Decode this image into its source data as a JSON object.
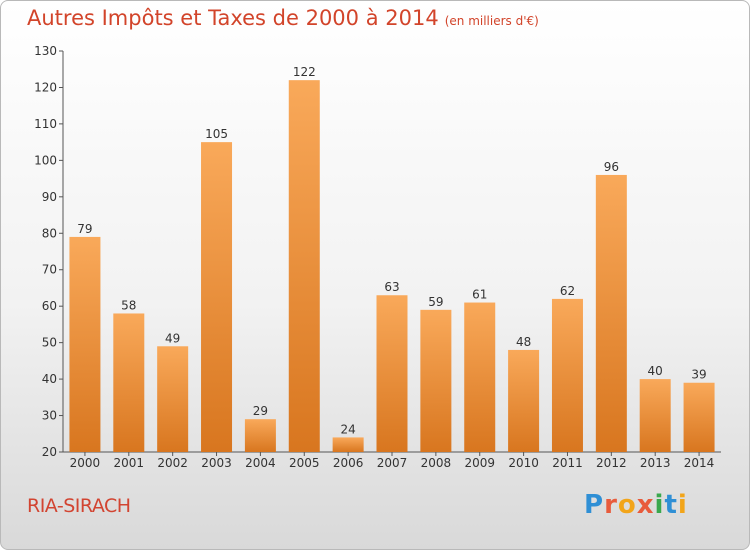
{
  "header": {
    "title": "Autres Impôts et Taxes de 2000 à 2014",
    "subtitle": "(en milliers d'€)"
  },
  "footer": {
    "place": "RIA-SIRACH",
    "logo": [
      "P",
      "r",
      "o",
      "x",
      "i",
      "t",
      "i"
    ]
  },
  "colors": {
    "bar_light": "#f9a95a",
    "bar_dark": "#d8761f",
    "title": "#d2442a"
  },
  "chart_data": {
    "type": "bar",
    "title": "Autres Impôts et Taxes de 2000 à 2014",
    "subtitle": "(en milliers d'€)",
    "categories": [
      "2000",
      "2001",
      "2002",
      "2003",
      "2004",
      "2005",
      "2006",
      "2007",
      "2008",
      "2009",
      "2010",
      "2011",
      "2012",
      "2013",
      "2014"
    ],
    "values": [
      79,
      58,
      49,
      105,
      29,
      122,
      24,
      63,
      59,
      61,
      48,
      62,
      96,
      40,
      39
    ],
    "ylim": [
      20,
      130
    ],
    "yticks": [
      20,
      30,
      40,
      50,
      60,
      70,
      80,
      90,
      100,
      110,
      120,
      130
    ],
    "grid": false,
    "legend": "none"
  }
}
